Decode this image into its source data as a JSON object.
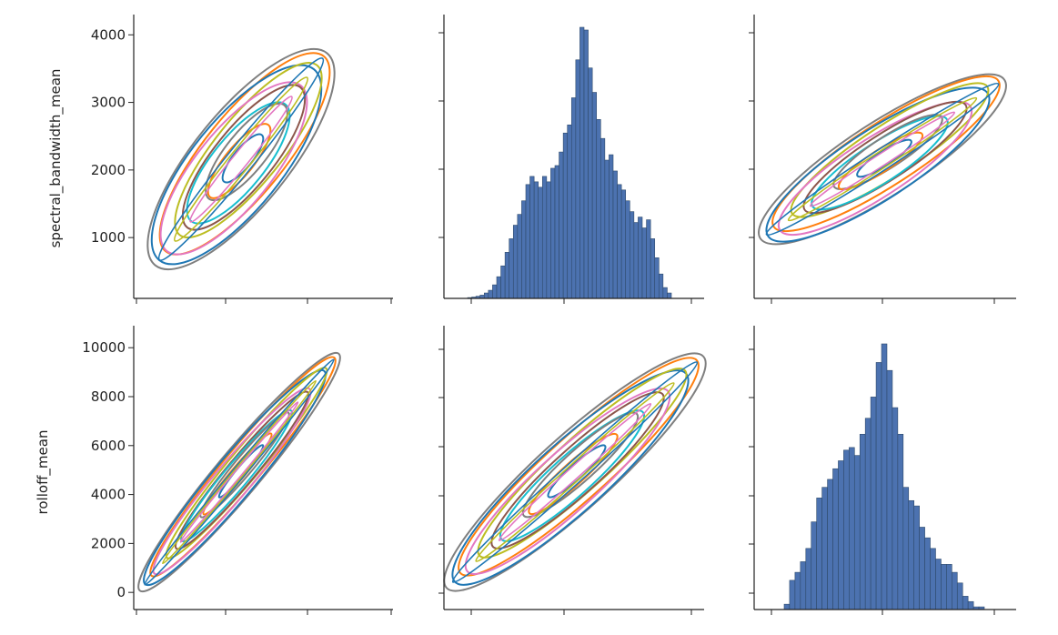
{
  "chart_data": [
    {
      "type": "kde_contour",
      "panel": "row0-col0",
      "ylabel": "spectral_bandwidth_mean",
      "yticks": [
        1000,
        2000,
        3000,
        4000
      ],
      "ylim": [
        100,
        4300
      ],
      "series_colors": [
        "#7f7f7f",
        "#ff7f0e",
        "#1f77b4",
        "#bcbd22",
        "#e377c2",
        "#8c564b",
        "#17becf"
      ],
      "blob": {
        "center_y": 2200,
        "axis_y_extent": [
          750,
          3600
        ]
      }
    },
    {
      "type": "histogram",
      "panel": "row0-col1",
      "bar_color": "#4c72b0",
      "bins_relative_height": [
        0.003,
        0.005,
        0.008,
        0.012,
        0.02,
        0.03,
        0.05,
        0.08,
        0.12,
        0.17,
        0.22,
        0.27,
        0.31,
        0.36,
        0.42,
        0.45,
        0.43,
        0.41,
        0.45,
        0.43,
        0.48,
        0.49,
        0.54,
        0.61,
        0.64,
        0.74,
        0.88,
        1.0,
        0.99,
        0.85,
        0.76,
        0.66,
        0.59,
        0.51,
        0.53,
        0.47,
        0.42,
        0.4,
        0.36,
        0.32,
        0.28,
        0.3,
        0.26,
        0.29,
        0.22,
        0.15,
        0.09,
        0.04,
        0.02
      ]
    },
    {
      "type": "kde_contour",
      "panel": "row0-col2",
      "series_colors": [
        "#7f7f7f",
        "#ff7f0e",
        "#1f77b4",
        "#bcbd22",
        "#e377c2",
        "#8c564b",
        "#17becf"
      ]
    },
    {
      "type": "kde_contour",
      "panel": "row1-col0",
      "ylabel": "rolloff_mean",
      "yticks": [
        0,
        2000,
        4000,
        6000,
        8000,
        10000
      ],
      "ylim": [
        -700,
        10900
      ],
      "series_colors": [
        "#7f7f7f",
        "#ff7f0e",
        "#1f77b4",
        "#bcbd22",
        "#e377c2",
        "#8c564b",
        "#17becf"
      ]
    },
    {
      "type": "kde_contour",
      "panel": "row1-col1",
      "series_colors": [
        "#7f7f7f",
        "#ff7f0e",
        "#1f77b4",
        "#bcbd22",
        "#e377c2",
        "#8c564b",
        "#17becf"
      ]
    },
    {
      "type": "histogram",
      "panel": "row1-col2",
      "bar_color": "#4c72b0",
      "bins_relative_height": [
        0.02,
        0.11,
        0.14,
        0.18,
        0.23,
        0.33,
        0.42,
        0.46,
        0.49,
        0.53,
        0.56,
        0.6,
        0.61,
        0.58,
        0.66,
        0.72,
        0.8,
        0.93,
        1.0,
        0.9,
        0.76,
        0.66,
        0.46,
        0.41,
        0.39,
        0.31,
        0.27,
        0.23,
        0.19,
        0.17,
        0.17,
        0.14,
        0.1,
        0.05,
        0.03,
        0.01,
        0.01
      ]
    }
  ]
}
